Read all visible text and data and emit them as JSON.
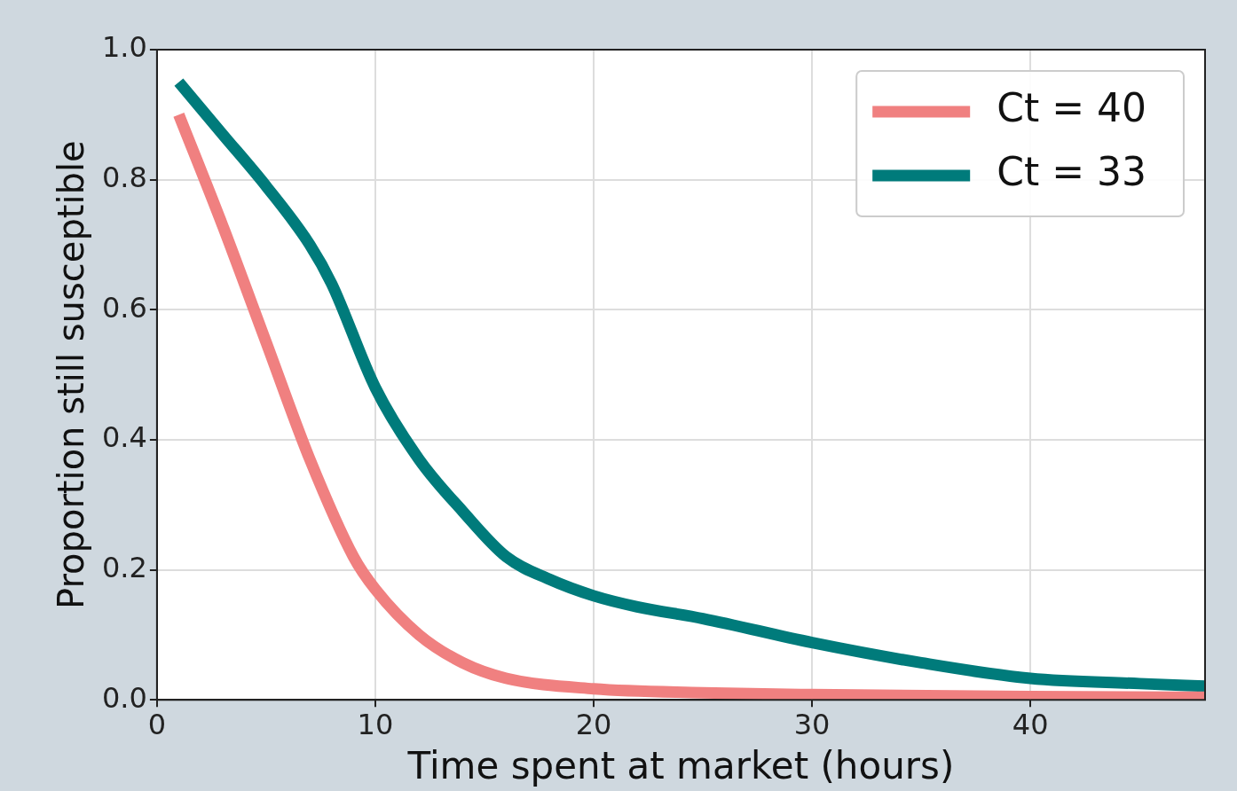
{
  "chart_data": {
    "type": "line",
    "xlabel": "Time spent at market (hours)",
    "ylabel": "Proportion still susceptible",
    "xlim": [
      0,
      48
    ],
    "xticks": [
      0,
      10,
      20,
      30,
      40
    ],
    "ylim": [
      0,
      1
    ],
    "yticks": [
      {
        "value": 0,
        "label": "0.0"
      },
      {
        "value": 0.2,
        "label": "0.2"
      },
      {
        "value": 0.4,
        "label": "0.4"
      },
      {
        "value": 0.6,
        "label": "0.6"
      },
      {
        "value": 0.8,
        "label": "0.8"
      },
      {
        "value": 1,
        "label": "1.0"
      }
    ],
    "grid": true,
    "legend": "top right",
    "marker": "none",
    "line_style": "solid",
    "series": [
      {
        "name": "Ct = 40",
        "color": "#f08080",
        "x": [
          1,
          3,
          5,
          7,
          9,
          10,
          12,
          14,
          16,
          20,
          25,
          30,
          40,
          48
        ],
        "values": [
          0.9,
          0.73,
          0.55,
          0.37,
          0.22,
          0.17,
          0.1,
          0.057,
          0.033,
          0.017,
          0.011,
          0.008,
          0.005,
          0.004
        ]
      },
      {
        "name": "Ct = 33",
        "color": "#007b7b",
        "x": [
          1,
          3,
          5,
          7,
          8,
          10,
          12,
          14,
          16,
          18,
          20,
          22,
          25,
          30,
          35,
          40,
          45,
          48
        ],
        "values": [
          0.95,
          0.87,
          0.79,
          0.7,
          0.64,
          0.48,
          0.37,
          0.29,
          0.22,
          0.185,
          0.16,
          0.143,
          0.125,
          0.088,
          0.057,
          0.033,
          0.025,
          0.021
        ]
      }
    ]
  }
}
